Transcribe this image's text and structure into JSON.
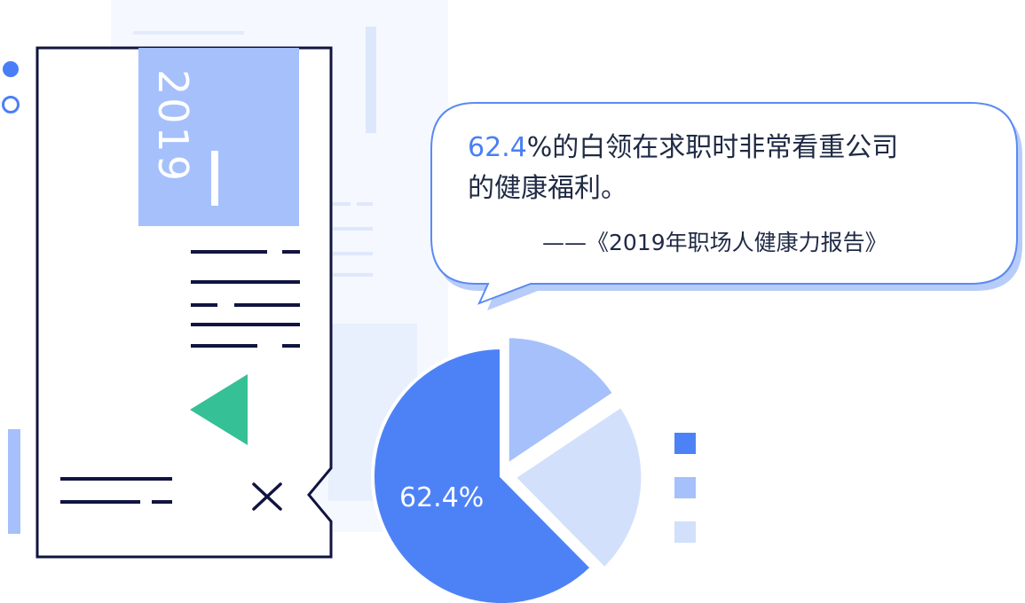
{
  "document": {
    "year": "2019"
  },
  "quote": {
    "highlight": "62.4",
    "body_line1": "%的白领在求职时非常看重公司",
    "body_line2": "的健康福利。",
    "source": "——《2019年职场人健康力报告》"
  },
  "chart_data": {
    "type": "pie",
    "slices": [
      {
        "value": 62.4,
        "color": "#4d82f7",
        "label": "62.4%"
      },
      {
        "value": 15.6,
        "color": "#a5c0fb",
        "label": ""
      },
      {
        "value": 22.0,
        "color": "#d2e0fc",
        "label": ""
      }
    ],
    "legend_colors": [
      "#4d82f7",
      "#a5c0fb",
      "#d2e0fc"
    ],
    "legend_placement": "right"
  },
  "colors": {
    "accent_blue": "#4a7ef6",
    "navy": "#11143f",
    "green": "#36c095"
  }
}
